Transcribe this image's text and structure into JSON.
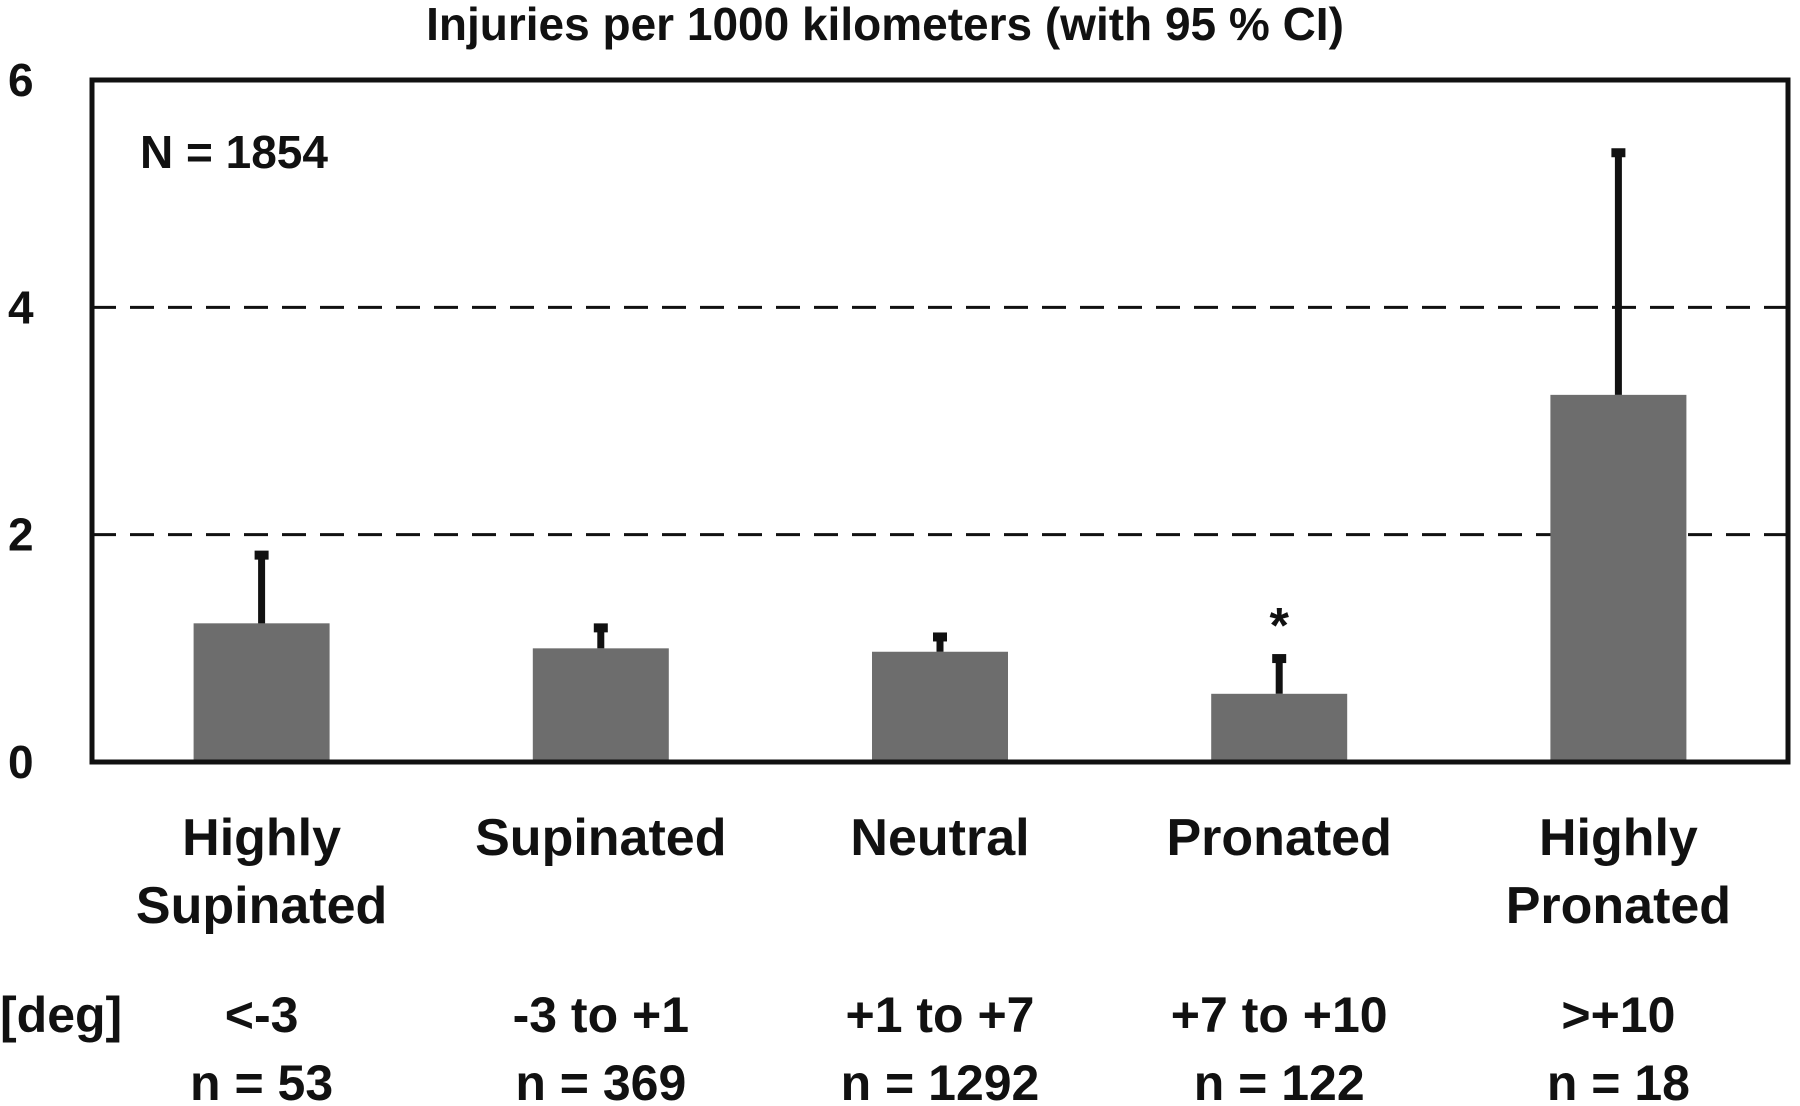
{
  "chart_data": {
    "type": "bar",
    "title": "Injuries per 1000 kilometers (with 95 % CI)",
    "annotation": "N = 1854",
    "categories": [
      [
        "Highly",
        "Supinated"
      ],
      [
        "Supinated"
      ],
      [
        "Neutral"
      ],
      [
        "Pronated"
      ],
      [
        "Highly",
        "Pronated"
      ]
    ],
    "values": [
      1.22,
      1.0,
      0.97,
      0.6,
      3.23
    ],
    "ci_upper": [
      1.82,
      1.18,
      1.1,
      0.91,
      5.36
    ],
    "significance": [
      "",
      "",
      "",
      "*",
      ""
    ],
    "deg_label": "[deg]",
    "deg_ranges": [
      "<-3",
      "-3 to +1",
      "+1 to +7",
      "+7 to +10",
      ">+10"
    ],
    "sample_sizes": [
      "n = 53",
      "n = 369",
      "n = 1292",
      "n = 122",
      "n = 18"
    ],
    "ylim": [
      0,
      6
    ],
    "yticks": [
      "0",
      "2",
      "4",
      "6"
    ],
    "grid": "dashed horizontal lines at 2 and 4",
    "bar_color": "#6d6d6d",
    "errorbar_color": "#111111"
  }
}
